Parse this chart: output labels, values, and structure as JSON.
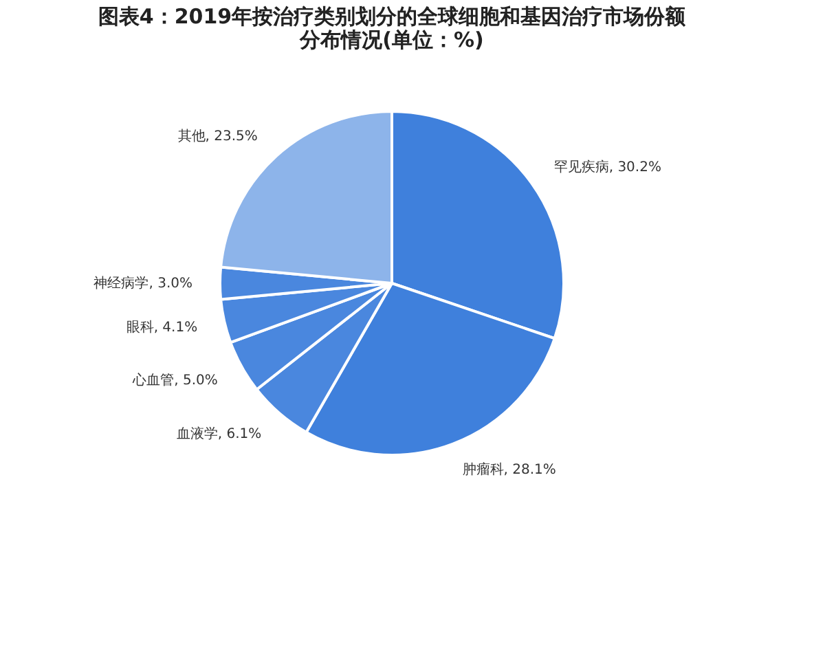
{
  "chart_data": {
    "type": "pie",
    "title": "图表4：2019年按治疗类别划分的全球细胞和基因治疗市场份额分布情况(单位：%)",
    "categories": [
      "罕见疾病",
      "肿瘤科",
      "血液学",
      "心血管",
      "眼科",
      "神经病学",
      "其他"
    ],
    "values": [
      30.2,
      28.1,
      6.1,
      5.0,
      4.1,
      3.0,
      23.5
    ],
    "value_labels": [
      "30.2%",
      "28.1%",
      "6.1%",
      "5.0%",
      "4.1%",
      "3.0%",
      "23.5%"
    ],
    "colors": [
      "#3f80dc",
      "#3f80dc",
      "#4a87de",
      "#4a87de",
      "#4a87de",
      "#4a87de",
      "#8db4ea"
    ],
    "legend": false
  }
}
